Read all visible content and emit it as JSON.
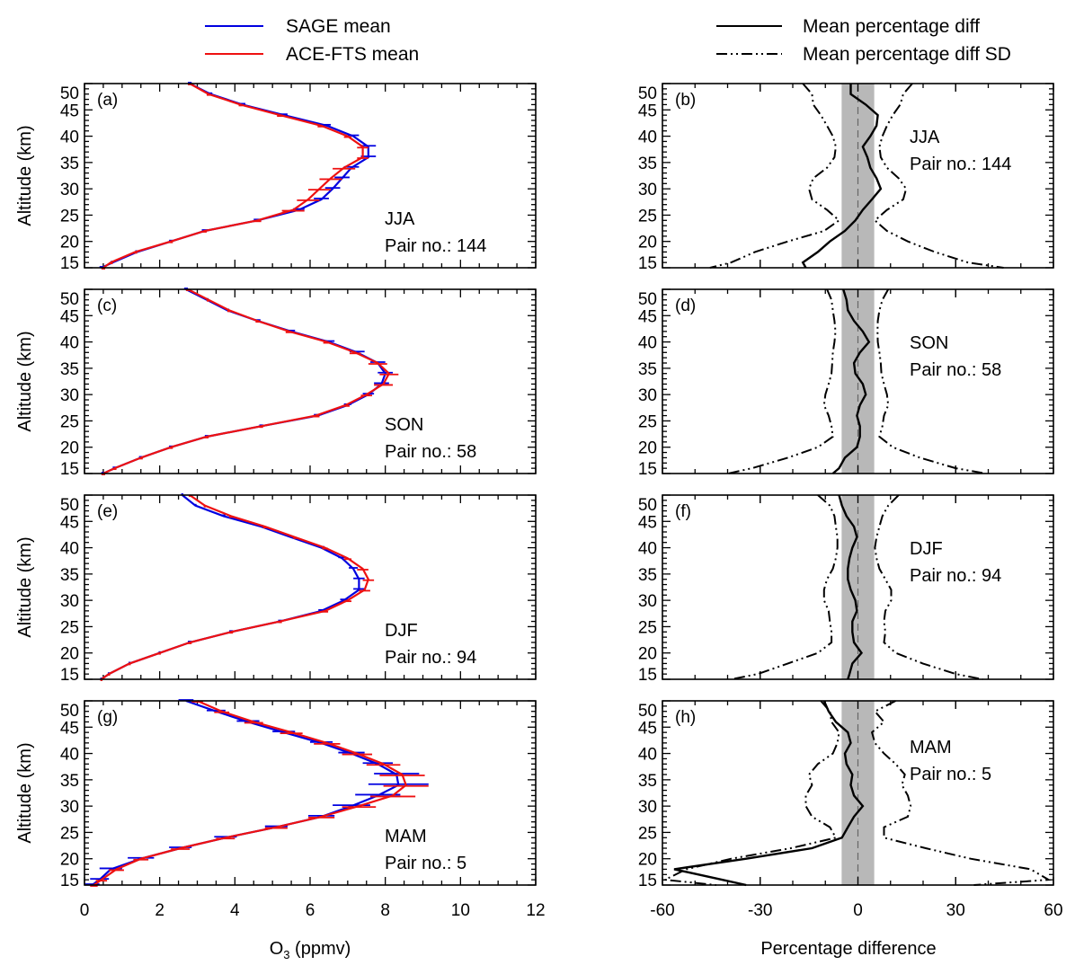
{
  "legend": {
    "sage": "SAGE mean",
    "ace": "ACE-FTS mean",
    "mean_diff": "Mean percentage diff",
    "mean_diff_sd": "Mean percentage diff SD"
  },
  "colors": {
    "sage": "#0000e0",
    "ace": "#ee1111",
    "diff": "#000000",
    "band": "#b8b8b8"
  },
  "chart_data": {
    "type": "line",
    "ylabel": "Altitude (km)",
    "ylim": [
      15,
      50
    ],
    "yticks": [
      "15",
      "20",
      "25",
      "30",
      "35",
      "40",
      "45",
      "50"
    ],
    "altitude": [
      50,
      48,
      46,
      44,
      42,
      40,
      38,
      36,
      34,
      32,
      30,
      28,
      26,
      24,
      22,
      20,
      18,
      16,
      15
    ],
    "left": {
      "xlabel_main": "O",
      "xlabel_sub": "3",
      "xlabel_rest": " (ppmv)",
      "xlim": [
        0,
        12
      ],
      "xticks": [
        "0",
        "2",
        "4",
        "6",
        "8",
        "10",
        "12"
      ]
    },
    "right": {
      "xlabel": "Percentage difference",
      "xlim": [
        -60,
        60
      ],
      "xticks": [
        "-60",
        "-30",
        "0",
        "30",
        "60"
      ],
      "band": [
        -5,
        5
      ]
    },
    "panels": [
      {
        "season": "JJA",
        "pairs": "Pair no.: 144",
        "profile_label": "(a)",
        "diff_label": "(b)",
        "sage": [
          2.8,
          3.35,
          4.2,
          5.3,
          6.45,
          7.15,
          7.55,
          7.55,
          7.1,
          6.85,
          6.6,
          6.3,
          5.7,
          4.6,
          3.2,
          2.3,
          1.4,
          0.75,
          0.45
        ],
        "ace": [
          2.8,
          3.3,
          4.15,
          5.2,
          6.3,
          7.0,
          7.4,
          7.4,
          6.9,
          6.55,
          6.25,
          5.95,
          5.55,
          4.6,
          3.2,
          2.3,
          1.35,
          0.7,
          0.5
        ],
        "sage_err": [
          0.05,
          0.05,
          0.08,
          0.1,
          0.1,
          0.15,
          0.2,
          0.2,
          0.2,
          0.2,
          0.2,
          0.2,
          0.15,
          0.1,
          0.08,
          0.05,
          0.05,
          0.05,
          0.05
        ],
        "ace_err": [
          0.05,
          0.05,
          0.05,
          0.08,
          0.1,
          0.1,
          0.15,
          0.15,
          0.3,
          0.3,
          0.3,
          0.3,
          0.3,
          0.1,
          0.05,
          0.05,
          0.05,
          0.05,
          0.05
        ],
        "mean_diff": [
          -2.2,
          -2.2,
          2.4,
          6.1,
          5.7,
          3.8,
          1.5,
          2.9,
          3.8,
          5.7,
          7.0,
          4.3,
          1.5,
          -0.8,
          -4,
          -8.6,
          -12.3,
          -16.9,
          -16
        ],
        "sd_upper": [
          16.7,
          13.9,
          13,
          10.7,
          8.9,
          7.5,
          6.6,
          7,
          8.9,
          12.5,
          14.8,
          13.9,
          8.9,
          5.2,
          8.9,
          15.3,
          23.6,
          33.7,
          44.7
        ],
        "sd_lower": [
          -16.9,
          -14.1,
          -13.7,
          -11.4,
          -9.5,
          -7.7,
          -6.8,
          -7.2,
          -9.5,
          -13.7,
          -15,
          -14.1,
          -9.5,
          -5.8,
          -10.4,
          -21.5,
          -31.6,
          -38.9,
          -45.4
        ]
      },
      {
        "season": "SON",
        "pairs": "Pair no.: 58",
        "profile_label": "(c)",
        "diff_label": "(d)",
        "sage": [
          2.7,
          3.25,
          3.8,
          4.6,
          5.5,
          6.5,
          7.25,
          7.8,
          8.0,
          7.9,
          7.55,
          7.0,
          6.2,
          4.7,
          3.25,
          2.3,
          1.5,
          0.8,
          0.5
        ],
        "ace": [
          2.75,
          3.3,
          3.85,
          4.6,
          5.45,
          6.45,
          7.2,
          7.8,
          8.1,
          7.95,
          7.5,
          6.95,
          6.15,
          4.7,
          3.25,
          2.3,
          1.5,
          0.8,
          0.5
        ],
        "sage_err": [
          0.05,
          0.05,
          0.05,
          0.08,
          0.1,
          0.15,
          0.2,
          0.2,
          0.2,
          0.2,
          0.15,
          0.1,
          0.1,
          0.05,
          0.05,
          0.05,
          0.05,
          0.05,
          0.05
        ],
        "ace_err": [
          0.05,
          0.05,
          0.05,
          0.05,
          0.1,
          0.1,
          0.15,
          0.25,
          0.25,
          0.25,
          0.15,
          0.1,
          0.1,
          0.05,
          0.05,
          0.05,
          0.05,
          0.05,
          0.05
        ],
        "mean_diff": [
          -4.5,
          -3.5,
          -3.1,
          -1.2,
          1.5,
          3.4,
          0.6,
          -1.2,
          -0.8,
          1.5,
          2.4,
          0.6,
          -0.3,
          0.6,
          0.6,
          -0.3,
          -4,
          -5.8,
          -7.7
        ],
        "sd_upper": [
          9.3,
          7.5,
          6.6,
          6.1,
          6,
          6.1,
          6.6,
          7,
          7.2,
          8,
          8.9,
          9.3,
          8,
          7.5,
          6.6,
          10.7,
          19,
          30,
          39.2
        ],
        "sd_lower": [
          -9.5,
          -8.1,
          -7.7,
          -7.2,
          -6.9,
          -7.2,
          -7.7,
          -7.9,
          -8.1,
          -9,
          -10,
          -10.4,
          -9,
          -8.1,
          -7.7,
          -12.3,
          -21.5,
          -32.5,
          -39.9
        ]
      },
      {
        "season": "DJF",
        "pairs": "Pair no.: 94",
        "profile_label": "(e)",
        "diff_label": "(f)",
        "sage": [
          2.6,
          2.95,
          3.7,
          4.7,
          5.5,
          6.3,
          6.85,
          7.15,
          7.3,
          7.3,
          6.9,
          6.3,
          5.2,
          3.9,
          2.8,
          2.0,
          1.2,
          0.65,
          0.45
        ],
        "ace": [
          2.8,
          3.2,
          3.9,
          4.8,
          5.6,
          6.4,
          7.0,
          7.4,
          7.55,
          7.45,
          7.0,
          6.4,
          5.2,
          3.9,
          2.8,
          2.0,
          1.2,
          0.65,
          0.45
        ],
        "sage_err": [
          0.03,
          0.03,
          0.05,
          0.05,
          0.05,
          0.08,
          0.1,
          0.12,
          0.15,
          0.15,
          0.1,
          0.08,
          0.05,
          0.05,
          0.05,
          0.03,
          0.03,
          0.03,
          0.03
        ],
        "ace_err": [
          0.03,
          0.03,
          0.05,
          0.05,
          0.05,
          0.08,
          0.1,
          0.15,
          0.15,
          0.15,
          0.1,
          0.08,
          0.05,
          0.05,
          0.05,
          0.03,
          0.03,
          0.03,
          0.03
        ],
        "mean_diff": [
          -5.8,
          -4.9,
          -3.5,
          -1.2,
          -0.3,
          -1.7,
          -2.6,
          -3.1,
          -3.1,
          -2.2,
          -0.8,
          -0.3,
          -1.7,
          -1.7,
          -1.2,
          1.1,
          -1.7,
          -2.6,
          -3.1
        ],
        "sd_upper": [
          12.5,
          9.3,
          7.5,
          6.6,
          5.7,
          5.2,
          5.7,
          6.6,
          8.4,
          10.2,
          10.2,
          8.4,
          8,
          8.4,
          8,
          11.6,
          19.9,
          30,
          38.3
        ],
        "sd_lower": [
          -12.3,
          -8.6,
          -7.2,
          -6.8,
          -6.3,
          -6.3,
          -6.8,
          -7.7,
          -9.5,
          -10.4,
          -10.4,
          -9,
          -8.6,
          -8.1,
          -8.1,
          -12.3,
          -21.5,
          -30.7,
          -38.9
        ]
      },
      {
        "season": "MAM",
        "pairs": "Pair no.: 5",
        "profile_label": "(g)",
        "diff_label": "(h)",
        "sage": [
          2.7,
          3.5,
          4.35,
          5.3,
          6.3,
          7.1,
          7.8,
          8.3,
          8.35,
          7.8,
          7.1,
          6.3,
          5.1,
          3.75,
          2.55,
          1.5,
          0.7,
          0.4,
          0.2
        ],
        "ace": [
          3.0,
          3.65,
          4.5,
          5.5,
          6.45,
          7.25,
          7.95,
          8.45,
          8.55,
          8.2,
          7.3,
          6.3,
          5.1,
          3.75,
          2.55,
          1.5,
          0.85,
          0.45,
          0.25
        ],
        "sage_err": [
          0.2,
          0.25,
          0.3,
          0.3,
          0.3,
          0.35,
          0.4,
          0.6,
          0.8,
          0.6,
          0.5,
          0.35,
          0.3,
          0.3,
          0.3,
          0.35,
          0.3,
          0.25,
          0.2
        ],
        "ace_err": [
          0.15,
          0.2,
          0.25,
          0.3,
          0.35,
          0.4,
          0.45,
          0.6,
          0.6,
          0.6,
          0.45,
          0.35,
          0.3,
          0.25,
          0.25,
          0.2,
          0.2,
          0.15,
          0.1
        ],
        "mean_diff": [
          -10.4,
          -9,
          -6.8,
          -3.1,
          -2.2,
          -4,
          -3.5,
          -1.7,
          -2.2,
          -1.2,
          1.5,
          -1.2,
          -3.1,
          -4.9,
          -14.1,
          -34.3,
          -56.4,
          -41.7,
          -34.3
        ],
        "sd_upper": [
          11.6,
          5.2,
          8,
          4.3,
          5.2,
          8,
          11.6,
          14.4,
          13.5,
          15.3,
          16.2,
          15.3,
          8,
          8,
          20.8,
          34.6,
          53,
          58.5,
          35.6
        ],
        "sd_lower": [
          -11.4,
          -8.6,
          -8.1,
          -5.8,
          -6.3,
          -7.7,
          -12.3,
          -15,
          -14.1,
          -16,
          -16,
          -14.1,
          -8.6,
          -6.8,
          -20.6,
          -38.9,
          -52.7,
          -59.2,
          -43.5
        ]
      }
    ]
  }
}
